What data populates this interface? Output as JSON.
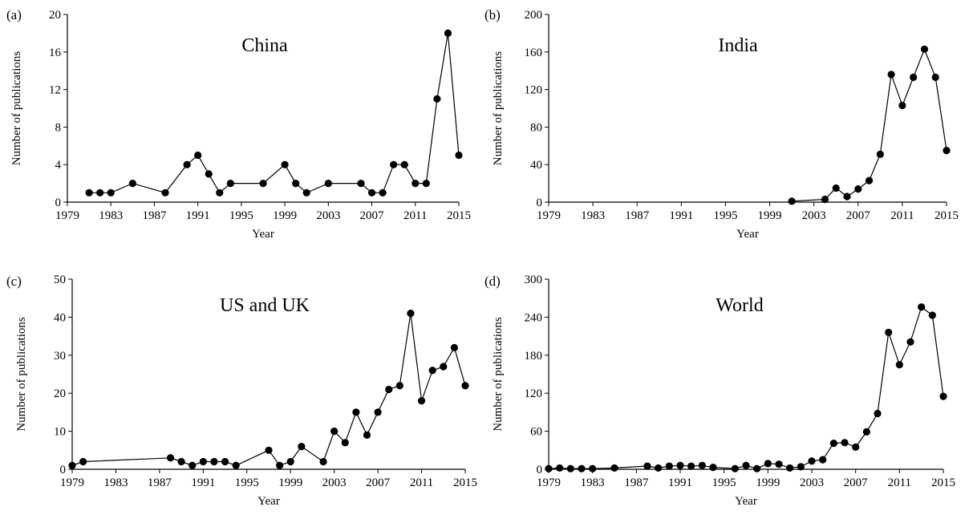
{
  "figure": {
    "domain": "Chart"
  },
  "chart_data": [
    {
      "type": "line",
      "panel_label": "(a)",
      "title": "China",
      "xlabel": "Year",
      "ylabel": "Number of publications",
      "xlim": [
        1979,
        2015
      ],
      "ylim": [
        0,
        20
      ],
      "xticks": [
        1979,
        1983,
        1987,
        1991,
        1995,
        1999,
        2003,
        2007,
        2011,
        2015
      ],
      "yticks": [
        0,
        4,
        8,
        12,
        16,
        20
      ],
      "grid": false,
      "marker": "filled-circle",
      "color": "#000000",
      "x": [
        1981,
        1982,
        1983,
        1985,
        1988,
        1990,
        1991,
        1992,
        1993,
        1994,
        1997,
        1999,
        2000,
        2001,
        2003,
        2006,
        2007,
        2008,
        2009,
        2010,
        2011,
        2012,
        2013,
        2014,
        2015
      ],
      "y": [
        1,
        1,
        1,
        2,
        1,
        4,
        5,
        3,
        1,
        2,
        2,
        4,
        2,
        1,
        2,
        2,
        1,
        1,
        4,
        4,
        2,
        2,
        11,
        18,
        5
      ]
    },
    {
      "type": "line",
      "panel_label": "(b)",
      "title": "India",
      "xlabel": "Year",
      "ylabel": "Number of publications",
      "xlim": [
        1979,
        2015
      ],
      "ylim": [
        0,
        200
      ],
      "xticks": [
        1979,
        1983,
        1987,
        1991,
        1995,
        1999,
        2003,
        2007,
        2011,
        2015
      ],
      "yticks": [
        0,
        40,
        80,
        120,
        160,
        200
      ],
      "grid": false,
      "marker": "filled-circle",
      "color": "#000000",
      "x": [
        2001,
        2004,
        2005,
        2006,
        2007,
        2008,
        2009,
        2010,
        2011,
        2012,
        2013,
        2014,
        2015
      ],
      "y": [
        1,
        3,
        15,
        6,
        14,
        23,
        51,
        136,
        103,
        133,
        163,
        133,
        55
      ]
    },
    {
      "type": "line",
      "panel_label": "(c)",
      "title": "US and UK",
      "xlabel": "Year",
      "ylabel": "Number of publications",
      "xlim": [
        1979,
        2015
      ],
      "ylim": [
        0,
        50
      ],
      "xticks": [
        1979,
        1983,
        1987,
        1991,
        1995,
        1999,
        2003,
        2007,
        2011,
        2015
      ],
      "yticks": [
        0,
        10,
        20,
        30,
        40,
        50
      ],
      "grid": false,
      "marker": "filled-circle",
      "color": "#000000",
      "x": [
        1979,
        1980,
        1988,
        1989,
        1990,
        1991,
        1992,
        1993,
        1994,
        1997,
        1998,
        1999,
        2000,
        2002,
        2003,
        2004,
        2005,
        2006,
        2007,
        2008,
        2009,
        2010,
        2011,
        2012,
        2013,
        2014,
        2015
      ],
      "y": [
        1,
        2,
        3,
        2,
        1,
        2,
        2,
        2,
        1,
        5,
        1,
        2,
        6,
        2,
        10,
        7,
        15,
        9,
        15,
        21,
        22,
        41,
        18,
        26,
        27,
        32,
        22
      ]
    },
    {
      "type": "line",
      "panel_label": "(d)",
      "title": "World",
      "xlabel": "Year",
      "ylabel": "Number of publications",
      "xlim": [
        1979,
        2015
      ],
      "ylim": [
        0,
        300
      ],
      "xticks": [
        1979,
        1983,
        1987,
        1991,
        1995,
        1999,
        2003,
        2007,
        2011,
        2015
      ],
      "yticks": [
        0,
        60,
        120,
        180,
        240,
        300
      ],
      "grid": false,
      "marker": "filled-circle",
      "color": "#000000",
      "x": [
        1979,
        1980,
        1981,
        1982,
        1983,
        1985,
        1988,
        1989,
        1990,
        1991,
        1992,
        1993,
        1994,
        1996,
        1997,
        1998,
        1999,
        2000,
        2001,
        2002,
        2003,
        2004,
        2005,
        2006,
        2007,
        2008,
        2009,
        2010,
        2011,
        2012,
        2013,
        2014,
        2015
      ],
      "y": [
        1,
        2,
        1,
        1,
        1,
        2,
        5,
        2,
        5,
        6,
        5,
        6,
        3,
        1,
        6,
        1,
        9,
        8,
        2,
        4,
        13,
        15,
        41,
        42,
        35,
        59,
        88,
        216,
        165,
        201,
        256,
        243,
        115
      ]
    }
  ]
}
